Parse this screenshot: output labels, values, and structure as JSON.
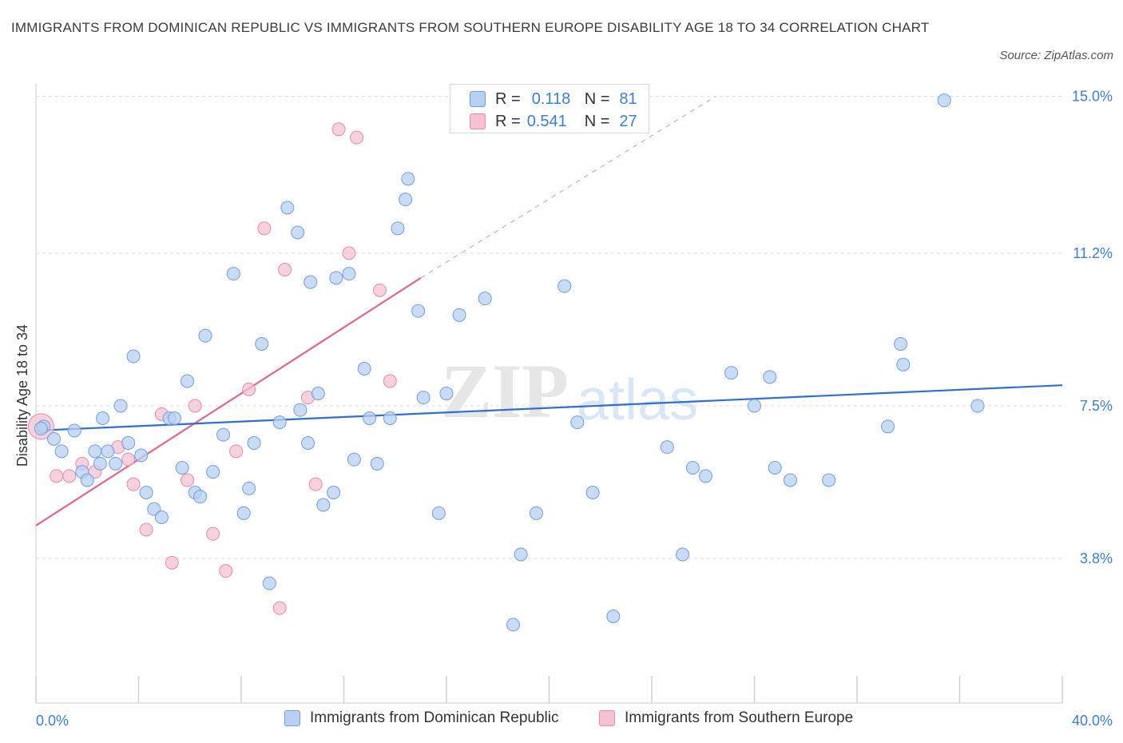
{
  "header": {
    "title": "IMMIGRANTS FROM DOMINICAN REPUBLIC VS IMMIGRANTS FROM SOUTHERN EUROPE DISABILITY AGE 18 TO 34 CORRELATION CHART",
    "source": "Source: ZipAtlas.com"
  },
  "watermark": {
    "zip": "ZIP",
    "atlas": "atlas"
  },
  "legend": {
    "rows": [
      {
        "r_label": "R =",
        "r_value": "0.118",
        "n_label": "N =",
        "n_value": "81"
      },
      {
        "r_label": "R =",
        "r_value": "0.541",
        "n_label": "N =",
        "n_value": "27"
      }
    ]
  },
  "bottom_legend": {
    "blue": "Immigrants from Dominican Republic",
    "pink": "Immigrants from Southern Europe"
  },
  "colors": {
    "blue_fill": "#b8d0f2",
    "blue_stroke": "#6f9ee0",
    "blue_line": "#2f6fcf",
    "pink_fill": "#f6c2d3",
    "pink_stroke": "#e58aa9",
    "pink_line": "#e0658f",
    "axis_label": "#3b7dd8"
  },
  "chart_data": {
    "type": "scatter",
    "ylabel": "Disability Age 18 to 34",
    "xlim": [
      0,
      40
    ],
    "ylim": [
      0.3,
      15.3
    ],
    "x_tick_labels": [
      "0.0%",
      "40.0%"
    ],
    "y_ticks": [
      {
        "value": 3.8,
        "label": "3.8%"
      },
      {
        "value": 7.5,
        "label": "7.5%"
      },
      {
        "value": 11.2,
        "label": "11.2%"
      },
      {
        "value": 15.0,
        "label": "15.0%"
      }
    ],
    "series": [
      {
        "name": "Immigrants from Dominican Republic",
        "color": "blue",
        "trend": {
          "x0": 0,
          "y0": 6.9,
          "x1": 40,
          "y1": 8.0
        },
        "points": [
          [
            0.3,
            7.0
          ],
          [
            0.7,
            6.7
          ],
          [
            1.0,
            6.4
          ],
          [
            1.5,
            6.9
          ],
          [
            1.8,
            5.9
          ],
          [
            2.0,
            5.7
          ],
          [
            2.3,
            6.4
          ],
          [
            2.5,
            6.1
          ],
          [
            2.6,
            7.2
          ],
          [
            2.8,
            6.4
          ],
          [
            3.1,
            6.1
          ],
          [
            3.3,
            7.5
          ],
          [
            3.6,
            6.6
          ],
          [
            3.8,
            8.7
          ],
          [
            4.1,
            6.3
          ],
          [
            4.3,
            5.4
          ],
          [
            4.6,
            5.0
          ],
          [
            4.9,
            4.8
          ],
          [
            5.2,
            7.2
          ],
          [
            5.4,
            7.2
          ],
          [
            5.7,
            6.0
          ],
          [
            5.9,
            8.1
          ],
          [
            6.2,
            5.4
          ],
          [
            6.4,
            5.3
          ],
          [
            6.6,
            9.2
          ],
          [
            6.9,
            5.9
          ],
          [
            7.3,
            6.8
          ],
          [
            7.7,
            10.7
          ],
          [
            8.1,
            4.9
          ],
          [
            8.3,
            5.5
          ],
          [
            8.5,
            6.6
          ],
          [
            8.8,
            9.0
          ],
          [
            9.1,
            3.2
          ],
          [
            9.5,
            7.1
          ],
          [
            9.8,
            12.3
          ],
          [
            10.2,
            11.7
          ],
          [
            10.3,
            7.4
          ],
          [
            10.6,
            6.6
          ],
          [
            10.7,
            10.5
          ],
          [
            11.0,
            7.8
          ],
          [
            11.2,
            5.1
          ],
          [
            11.6,
            5.4
          ],
          [
            11.7,
            10.6
          ],
          [
            12.2,
            10.7
          ],
          [
            12.4,
            6.2
          ],
          [
            12.8,
            8.4
          ],
          [
            13.0,
            7.2
          ],
          [
            13.3,
            6.1
          ],
          [
            13.8,
            7.2
          ],
          [
            14.1,
            11.8
          ],
          [
            14.4,
            12.5
          ],
          [
            14.5,
            13.0
          ],
          [
            14.9,
            9.8
          ],
          [
            15.1,
            7.7
          ],
          [
            15.7,
            4.9
          ],
          [
            16.0,
            7.8
          ],
          [
            16.5,
            9.7
          ],
          [
            17.5,
            10.1
          ],
          [
            18.6,
            2.2
          ],
          [
            18.9,
            3.9
          ],
          [
            19.5,
            4.9
          ],
          [
            20.6,
            10.4
          ],
          [
            21.1,
            7.1
          ],
          [
            21.7,
            5.4
          ],
          [
            22.5,
            2.4
          ],
          [
            24.6,
            6.5
          ],
          [
            25.2,
            3.9
          ],
          [
            25.6,
            6.0
          ],
          [
            26.1,
            5.8
          ],
          [
            27.1,
            8.3
          ],
          [
            28.0,
            7.5
          ],
          [
            28.6,
            8.2
          ],
          [
            28.8,
            6.0
          ],
          [
            29.4,
            5.7
          ],
          [
            30.9,
            5.7
          ],
          [
            33.2,
            7.0
          ],
          [
            33.7,
            9.0
          ],
          [
            33.8,
            8.5
          ],
          [
            35.4,
            14.9
          ],
          [
            36.7,
            7.5
          ],
          [
            0.2,
            6.95
          ]
        ]
      },
      {
        "name": "Immigrants from Southern Europe",
        "color": "pink",
        "trend": {
          "x0": 0,
          "y0": 4.6,
          "x1": 15.0,
          "y1": 10.6,
          "dashed_x1": 26.5,
          "dashed_y1": 15.0
        },
        "points": [
          [
            0.2,
            7.0
          ],
          [
            0.8,
            5.8
          ],
          [
            1.3,
            5.8
          ],
          [
            1.8,
            6.1
          ],
          [
            2.3,
            5.9
          ],
          [
            3.2,
            6.5
          ],
          [
            3.6,
            6.2
          ],
          [
            3.8,
            5.6
          ],
          [
            4.3,
            4.5
          ],
          [
            4.9,
            7.3
          ],
          [
            5.3,
            3.7
          ],
          [
            5.9,
            5.7
          ],
          [
            6.2,
            7.5
          ],
          [
            6.9,
            4.4
          ],
          [
            7.4,
            3.5
          ],
          [
            7.8,
            6.4
          ],
          [
            8.3,
            7.9
          ],
          [
            8.9,
            11.8
          ],
          [
            9.5,
            2.6
          ],
          [
            9.7,
            10.8
          ],
          [
            10.6,
            7.7
          ],
          [
            10.9,
            5.6
          ],
          [
            11.8,
            14.2
          ],
          [
            12.2,
            11.2
          ],
          [
            12.5,
            14.0
          ],
          [
            13.4,
            10.3
          ],
          [
            13.8,
            8.1
          ]
        ]
      }
    ]
  }
}
